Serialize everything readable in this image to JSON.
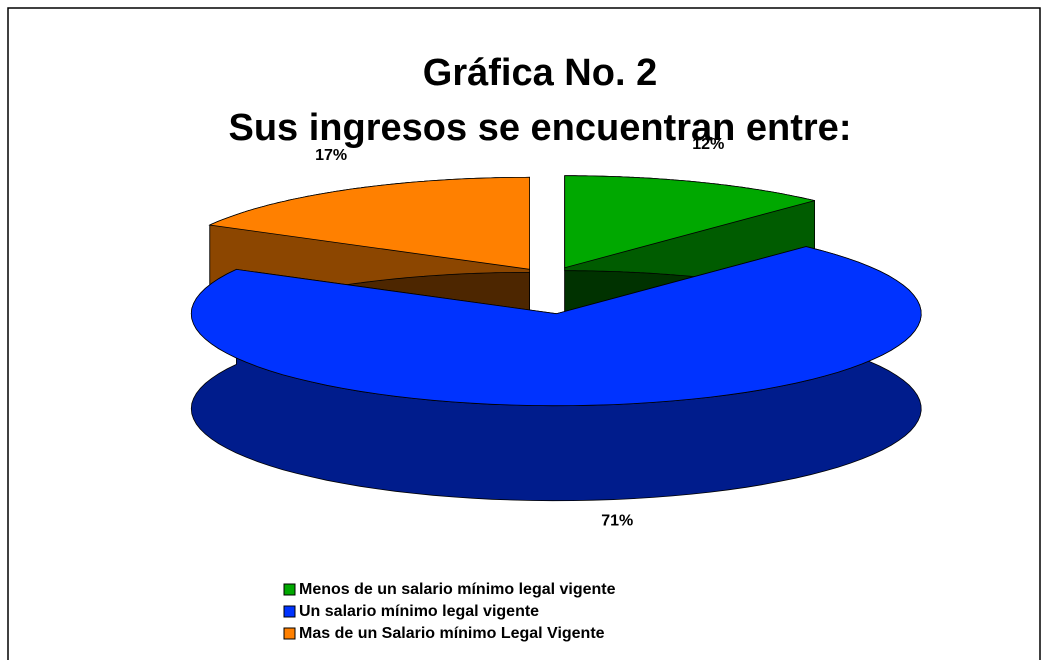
{
  "chart_data": {
    "type": "pie3d",
    "title": [
      "Gráfica No. 2",
      "Sus ingresos se encuentran entre:"
    ],
    "categories": [
      "Menos de un salario mínimo legal vigente",
      "Un salario mínimo legal vigente",
      "Mas de un Salario mínimo Legal Vigente"
    ],
    "values": [
      12,
      71,
      17
    ],
    "value_labels": [
      "12%",
      "71%",
      "17%"
    ],
    "colors": [
      "#00a800",
      "#0033ff",
      "#ff8000"
    ],
    "legend": "bottom"
  }
}
